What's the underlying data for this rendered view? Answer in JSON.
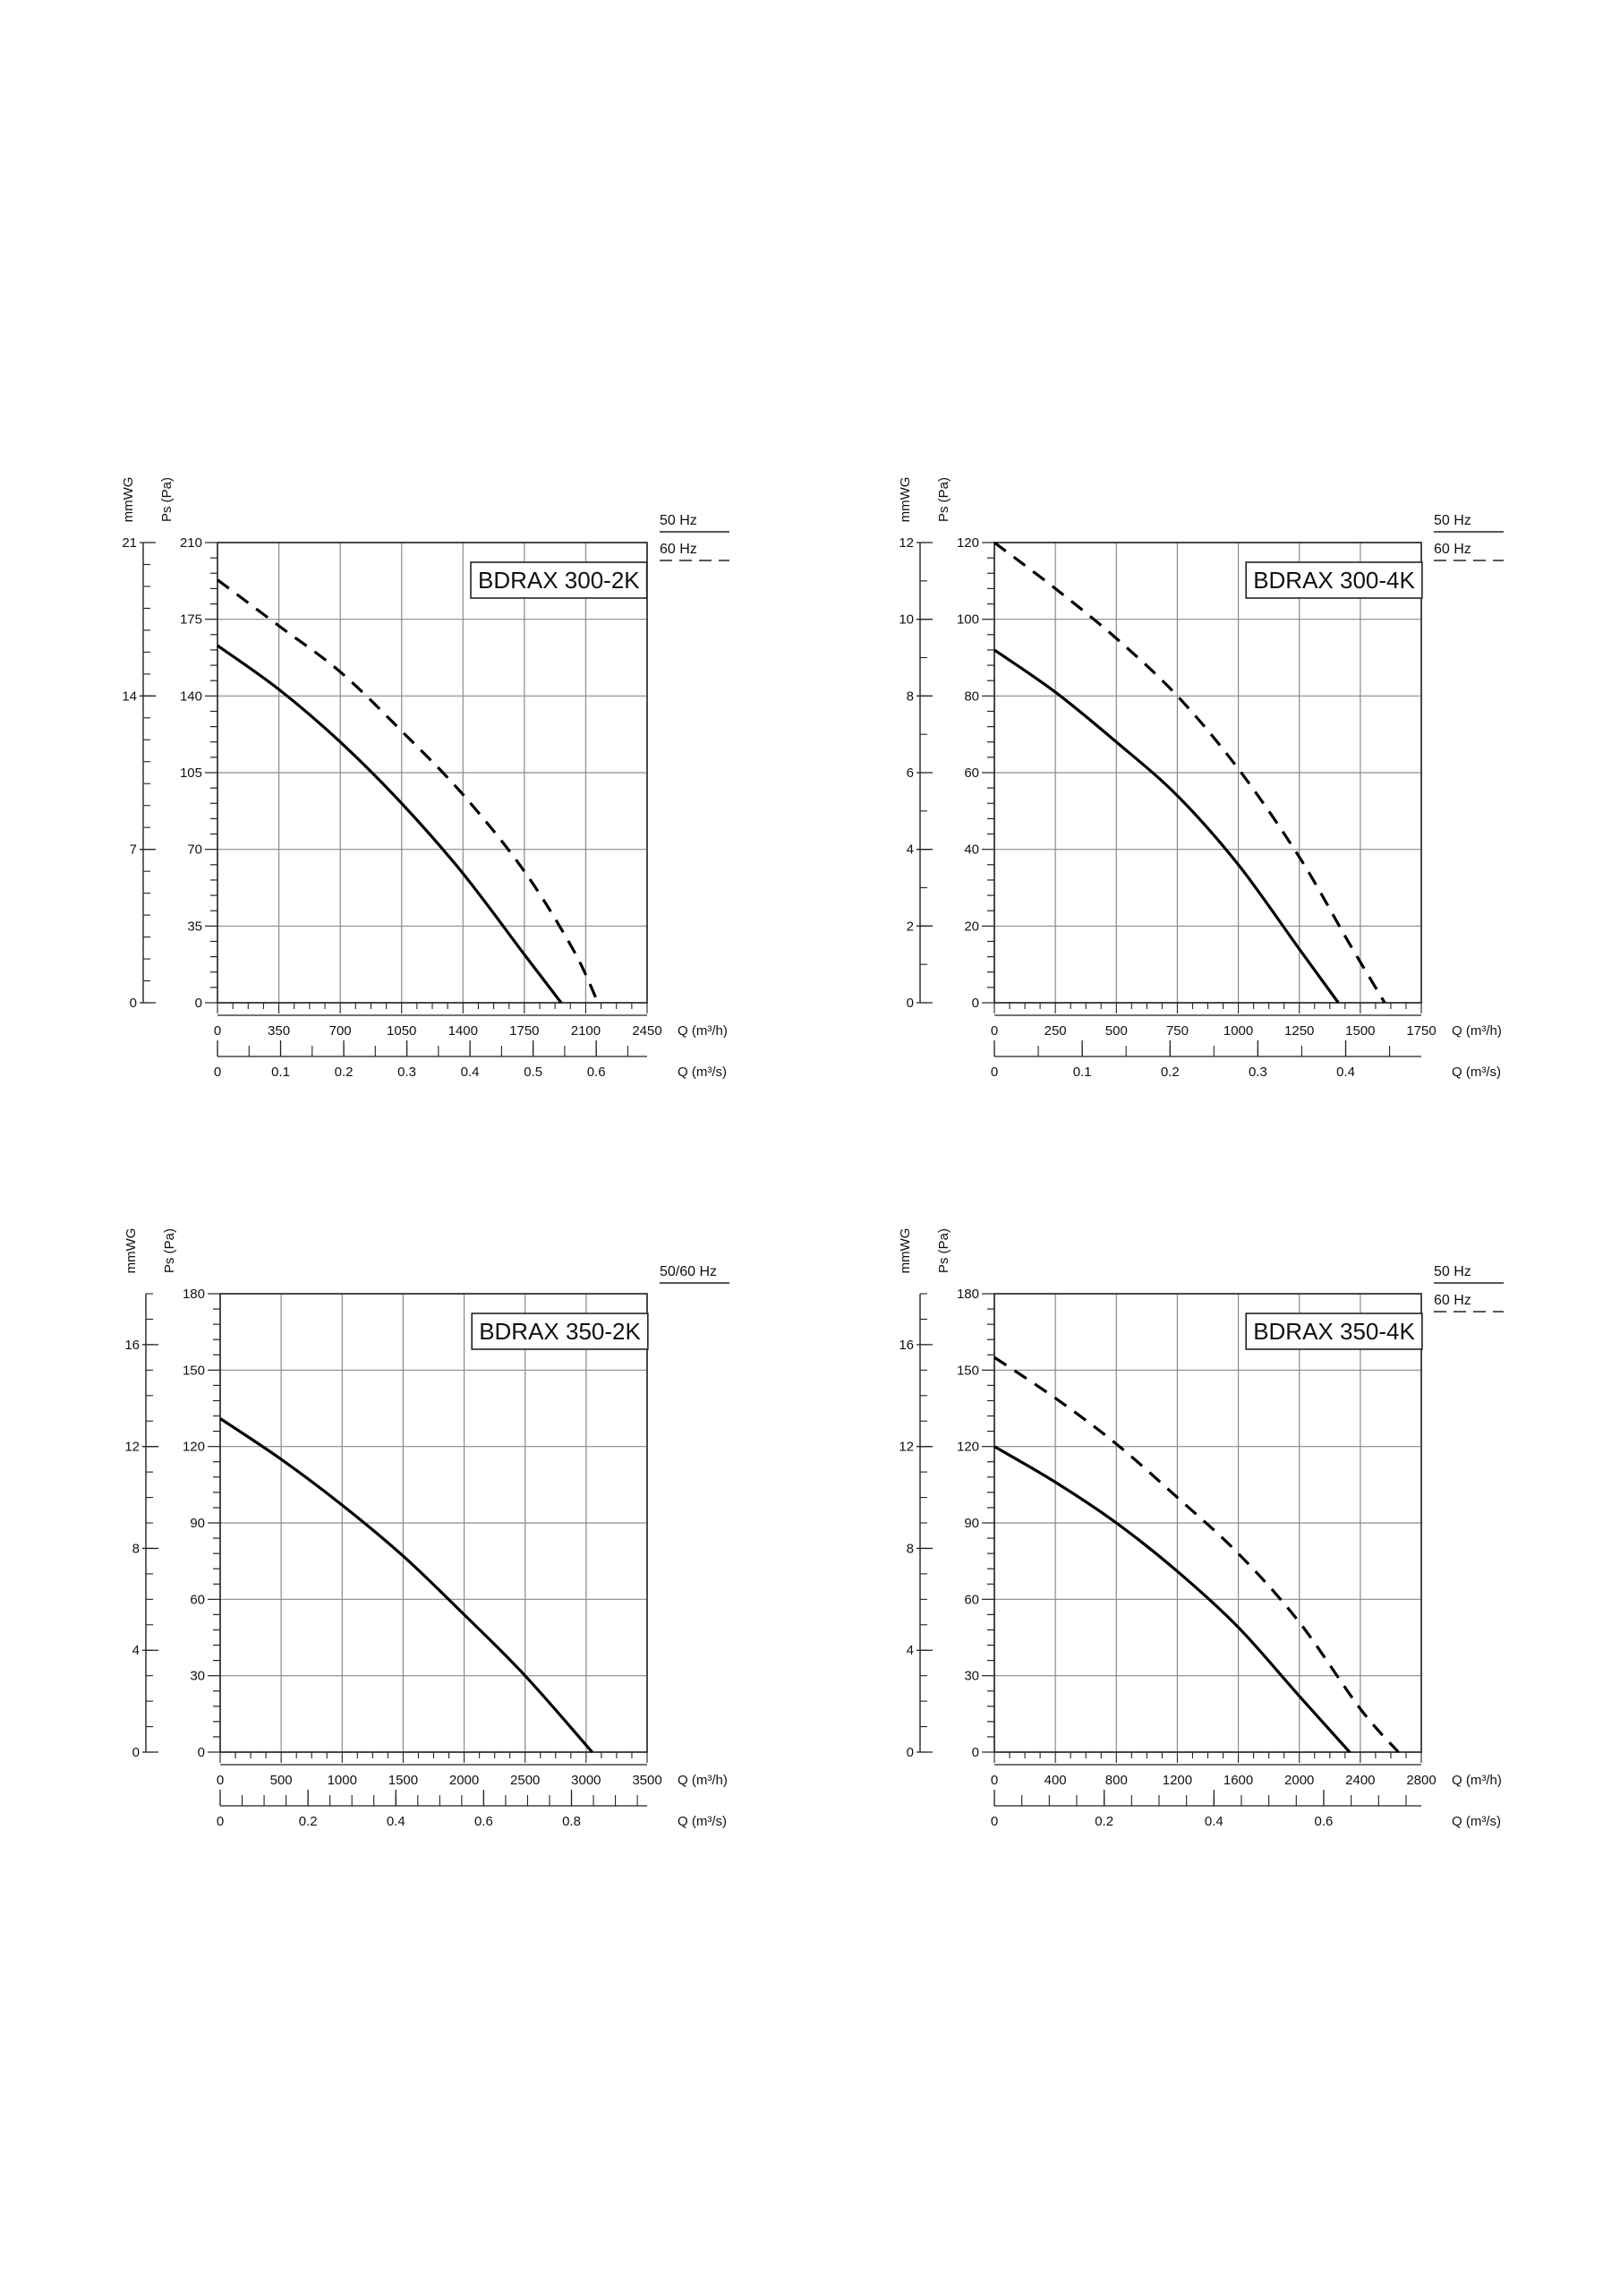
{
  "chart_data": [
    {
      "type": "line",
      "model": "BDRAX 300-2K",
      "legend": [
        "50 Hz",
        "60 Hz"
      ],
      "legend_placement": "top-right",
      "grid": true,
      "xlabel_flow_h": "Q (m³/h)",
      "xlabel_flow_s": "Q (m³/s)",
      "ylabel_pa": "Ps (Pa)",
      "ylabel_mmwg": "mmWG",
      "xlim": [
        0,
        2450
      ],
      "ylim": [
        0,
        210
      ],
      "x_ticks": [
        "0",
        "350",
        "700",
        "1050",
        "1400",
        "1750",
        "2100",
        "2450"
      ],
      "y_ticks": [
        "0",
        "35",
        "70",
        "105",
        "140",
        "175",
        "210"
      ],
      "mmwg_ticks": [
        "0",
        "7",
        "14",
        "21"
      ],
      "mmwg_max": 21,
      "q_s_ticks": [
        "0",
        "0.1",
        "0.2",
        "0.3",
        "0.4",
        "0.5",
        "0.6"
      ],
      "q_s_max": 0.6806,
      "series": [
        {
          "name": "50 Hz",
          "style": "solid",
          "x": [
            0,
            350,
            700,
            1050,
            1400,
            1750,
            1960
          ],
          "y": [
            163,
            143,
            119,
            91,
            59,
            22,
            0
          ]
        },
        {
          "name": "60 Hz",
          "style": "dashed",
          "x": [
            0,
            350,
            700,
            1050,
            1400,
            1750,
            2030,
            2170
          ],
          "y": [
            193,
            172,
            151,
            124,
            95,
            60,
            24,
            0
          ]
        }
      ]
    },
    {
      "type": "line",
      "model": "BDRAX 300-4K",
      "legend": [
        "50 Hz",
        "60 Hz"
      ],
      "legend_placement": "top-right",
      "grid": true,
      "xlabel_flow_h": "Q (m³/h)",
      "xlabel_flow_s": "Q (m³/s)",
      "ylabel_pa": "Ps (Pa)",
      "ylabel_mmwg": "mmWG",
      "xlim": [
        0,
        1750
      ],
      "ylim": [
        0,
        120
      ],
      "x_ticks": [
        "0",
        "250",
        "500",
        "750",
        "1000",
        "1250",
        "1500",
        "1750"
      ],
      "y_ticks": [
        "0",
        "20",
        "40",
        "60",
        "80",
        "100",
        "120"
      ],
      "mmwg_ticks": [
        "0",
        "2",
        "4",
        "6",
        "8",
        "10",
        "12"
      ],
      "mmwg_max": 12,
      "q_s_ticks": [
        "0",
        "0.1",
        "0.2",
        "0.3",
        "0.4"
      ],
      "q_s_max": 0.4861,
      "series": [
        {
          "name": "50 Hz",
          "style": "solid",
          "x": [
            0,
            250,
            500,
            750,
            1000,
            1250,
            1410
          ],
          "y": [
            92,
            81,
            68,
            54,
            36,
            14,
            0
          ]
        },
        {
          "name": "60 Hz",
          "style": "dashed",
          "x": [
            0,
            250,
            500,
            750,
            1000,
            1250,
            1450,
            1600
          ],
          "y": [
            120,
            108,
            95,
            80,
            61,
            38,
            16,
            0
          ]
        }
      ]
    },
    {
      "type": "line",
      "model": "BDRAX 350-2K",
      "legend": [
        "50/60 Hz"
      ],
      "legend_placement": "top-right",
      "grid": true,
      "xlabel_flow_h": "Q (m³/h)",
      "xlabel_flow_s": "Q (m³/s)",
      "ylabel_pa": "Ps (Pa)",
      "ylabel_mmwg": "mmWG",
      "xlim": [
        0,
        3500
      ],
      "ylim": [
        0,
        180
      ],
      "x_ticks": [
        "0",
        "500",
        "1000",
        "1500",
        "2000",
        "2500",
        "3000",
        "3500"
      ],
      "y_ticks": [
        "0",
        "30",
        "60",
        "90",
        "120",
        "150",
        "180"
      ],
      "mmwg_ticks": [
        "0",
        "4",
        "8",
        "12",
        "16"
      ],
      "mmwg_max": 18,
      "q_s_ticks": [
        "0",
        "0.2",
        "0.4",
        "0.6",
        "0.8"
      ],
      "q_s_max": 0.9722,
      "series": [
        {
          "name": "50/60 Hz",
          "style": "solid",
          "x": [
            0,
            500,
            1000,
            1500,
            2000,
            2500,
            3050
          ],
          "y": [
            131,
            115,
            97,
            77,
            54,
            30,
            0
          ]
        }
      ]
    },
    {
      "type": "line",
      "model": "BDRAX 350-4K",
      "legend": [
        "50 Hz",
        "60 Hz"
      ],
      "legend_placement": "top-right",
      "grid": true,
      "xlabel_flow_h": "Q (m³/h)",
      "xlabel_flow_s": "Q (m³/s)",
      "ylabel_pa": "Ps (Pa)",
      "ylabel_mmwg": "mmWG",
      "xlim": [
        0,
        2800
      ],
      "ylim": [
        0,
        180
      ],
      "x_ticks": [
        "0",
        "400",
        "800",
        "1200",
        "1600",
        "2000",
        "2400",
        "2800"
      ],
      "y_ticks": [
        "0",
        "30",
        "60",
        "90",
        "120",
        "150",
        "180"
      ],
      "mmwg_ticks": [
        "0",
        "4",
        "8",
        "12",
        "16"
      ],
      "mmwg_max": 18,
      "q_s_ticks": [
        "0",
        "0.2",
        "0.4",
        "0.6"
      ],
      "q_s_max": 0.7778,
      "series": [
        {
          "name": "50 Hz",
          "style": "solid",
          "x": [
            0,
            400,
            800,
            1200,
            1600,
            2000,
            2330
          ],
          "y": [
            120,
            106,
            90,
            71,
            49,
            22,
            0
          ]
        },
        {
          "name": "60 Hz",
          "style": "dashed",
          "x": [
            0,
            400,
            800,
            1200,
            1600,
            2000,
            2400,
            2650
          ],
          "y": [
            155,
            139,
            121,
            100,
            78,
            51,
            17,
            0
          ]
        }
      ]
    }
  ]
}
